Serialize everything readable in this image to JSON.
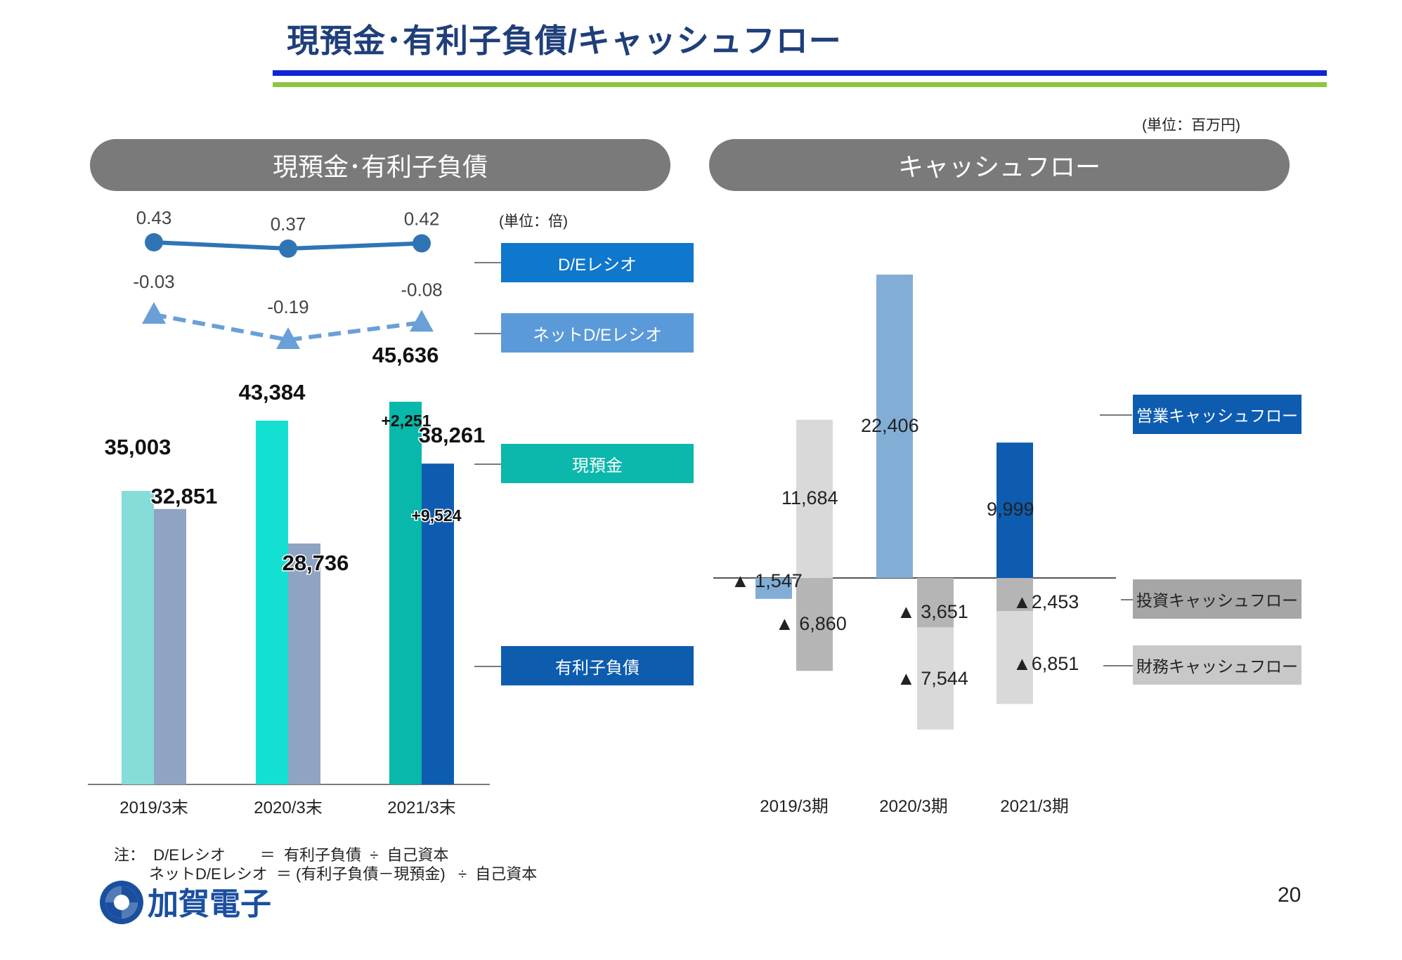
{
  "title": "現預金･有利子負債/キャッシュフロー",
  "unit_top": "(単位：百万円)",
  "left_panel": {
    "header": "現預金･有利子負債",
    "ratio_unit": "(単位：倍)",
    "legend": {
      "de_ratio": "D/Eレシオ",
      "net_de_ratio": "ネットD/Eレシオ",
      "cash": "現預金",
      "debt": "有利子負債"
    },
    "note_line1": "注：  D/Eレシオ        ＝  有利子負債  ÷  自己資本",
    "note_line2": "ネットD/Eレシオ  ＝ (有利子負債－現預金)   ÷  自己資本"
  },
  "right_panel": {
    "header": "キャッシュフロー",
    "legend": {
      "operating": "営業キャッシュフロー",
      "investing": "投資キャッシュフロー",
      "financing": "財務キャッシュフロー"
    }
  },
  "logo_text": "加賀電子",
  "page_number": "20",
  "colors": {
    "title": "#1f3f7a",
    "cash_2019": "#85dcd8",
    "cash_2020": "#14e0d2",
    "cash_2021": "#08b8aa",
    "debt_2019_2020": "#8fa3c2",
    "debt_2021": "#0d5cb0",
    "de_line": "#2f75b5",
    "net_de_line": "#6a9fd8",
    "legend_de": "#0f77cc",
    "legend_net_de": "#5b9ad8",
    "legend_cash": "#0bb8ab",
    "legend_debt": "#0d5cae",
    "operating": "#82aed6",
    "operating_2021": "#0d5cb0",
    "investing": "#b5b5b5",
    "financing": "#d9d9d9",
    "legend_operating": "#0d5cb0",
    "legend_investing": "#a6a6a6",
    "legend_financing": "#c8c8c8"
  },
  "chart_data": [
    {
      "type": "bar",
      "categories": [
        "2019/3末",
        "2020/3末",
        "2021/3末"
      ],
      "series": [
        {
          "name": "現預金",
          "values": [
            35003,
            43384,
            45636
          ],
          "labels": [
            "35,003",
            "43,384",
            "45,636"
          ]
        },
        {
          "name": "有利子負債",
          "values": [
            32851,
            28736,
            38261
          ],
          "labels": [
            "32,851",
            "28,736",
            "38,261"
          ]
        }
      ],
      "annotations": [
        {
          "category": "2021/3末",
          "series": "現預金",
          "text": "+2,251"
        },
        {
          "category": "2021/3末",
          "series": "有利子負債",
          "text": "+9,524"
        }
      ],
      "ylim": [
        0,
        50000
      ]
    },
    {
      "type": "line",
      "categories": [
        "2019/3末",
        "2020/3末",
        "2021/3末"
      ],
      "series": [
        {
          "name": "D/Eレシオ",
          "values": [
            0.43,
            0.37,
            0.42
          ],
          "labels": [
            "0.43",
            "0.37",
            "0.42"
          ],
          "marker": "circle",
          "style": "solid"
        },
        {
          "name": "ネットD/Eレシオ",
          "values": [
            -0.03,
            -0.19,
            -0.08
          ],
          "labels": [
            "-0.03",
            "-0.19",
            "-0.08"
          ],
          "marker": "triangle",
          "style": "dashed"
        }
      ]
    },
    {
      "type": "bar",
      "categories": [
        "2019/3期",
        "2020/3期",
        "2021/3期"
      ],
      "series": [
        {
          "name": "営業キャッシュフロー",
          "values": [
            -1547,
            22406,
            9999
          ],
          "labels": [
            "▲ 1,547",
            "22,406",
            "9,999"
          ]
        },
        {
          "name": "投資キャッシュフロー",
          "values": [
            -6860,
            -3651,
            -2453
          ],
          "labels": [
            "▲ 6,860",
            "▲ 3,651",
            "▲2,453"
          ]
        },
        {
          "name": "財務キャッシュフロー",
          "values": [
            11684,
            -7544,
            -6851
          ],
          "labels": [
            "11,684",
            "▲ 7,544",
            "▲6,851"
          ]
        }
      ],
      "ylim": [
        -12000,
        24000
      ]
    }
  ]
}
